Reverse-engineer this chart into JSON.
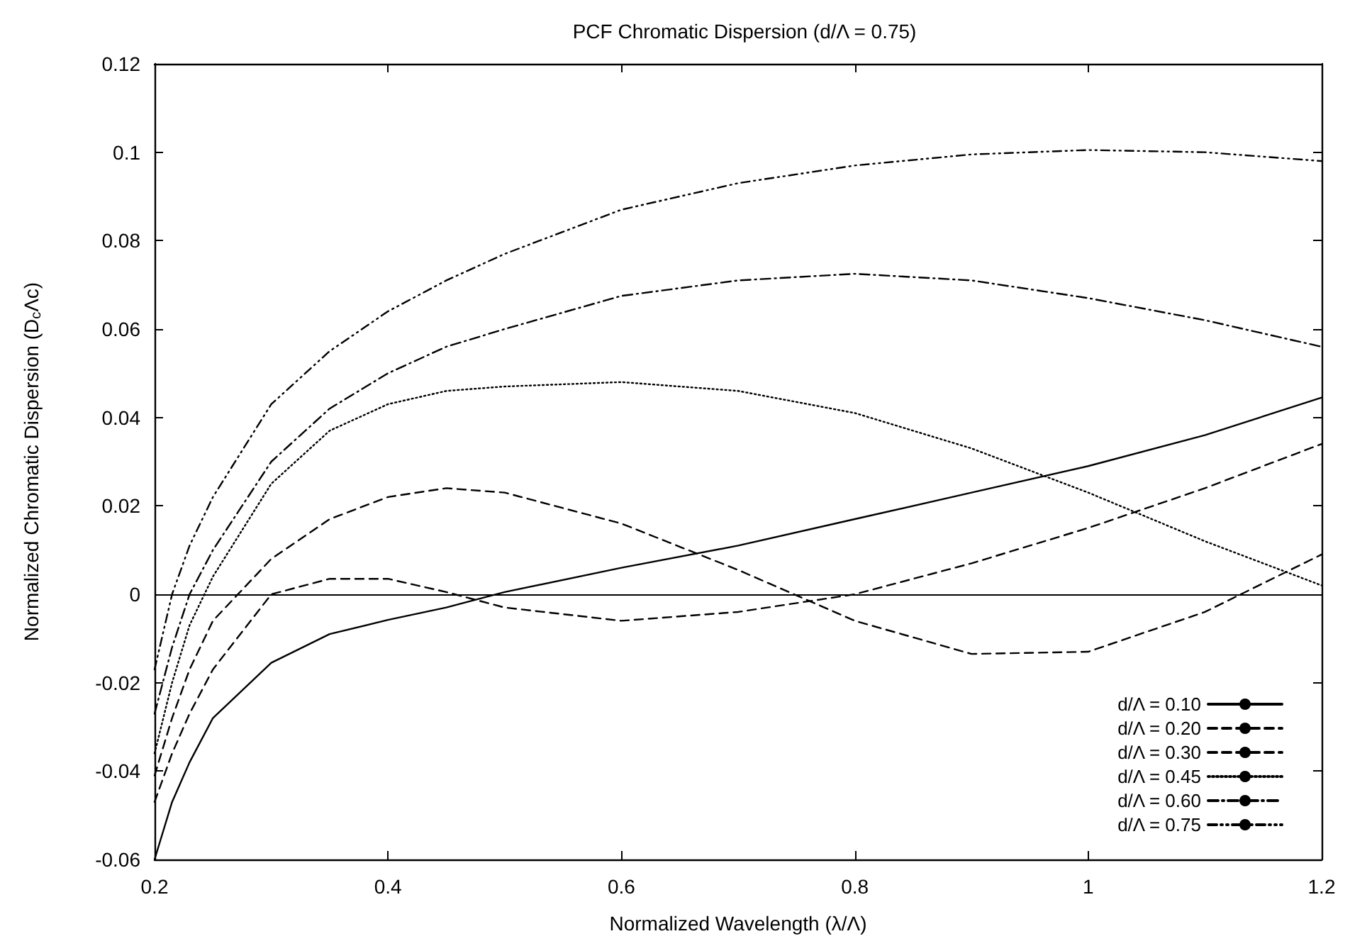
{
  "chart_data": {
    "type": "line",
    "title": "PCF Chromatic Dispersion (d/Λ = 0.75)",
    "xlabel": "Normalized Wavelength (λ/Λ)",
    "ylabel": "Normalized Chromatic Dispersion (D$_{c}$Λc)",
    "x": [
      0.2,
      0.215,
      0.23,
      0.25,
      0.3,
      0.35,
      0.4,
      0.45,
      0.5,
      0.6,
      0.7,
      0.8,
      0.9,
      1.0,
      1.1,
      1.2
    ],
    "xlim": [
      0.2,
      1.2
    ],
    "xticks": [
      0.2,
      0.4,
      0.6,
      0.8,
      1,
      1.2
    ],
    "ylim": [
      -0.06,
      0.12
    ],
    "yticks": [
      -0.06,
      -0.04,
      -0.02,
      0,
      0.02,
      0.04,
      0.06,
      0.08,
      0.1,
      0.12
    ],
    "grid": false,
    "legend": "bottom right",
    "marker": "none",
    "ref_lines": [
      {
        "axis": "y",
        "value": 0,
        "color": "#000000",
        "line_style": "solid"
      }
    ],
    "series": [
      {
        "name": "d/Λ = 0.10",
        "color": "#000000",
        "line_style": "solid",
        "values": [
          -0.06,
          -0.047,
          -0.038,
          -0.028,
          -0.0155,
          -0.009,
          -0.0058,
          -0.003,
          0.0005,
          0.006,
          0.011,
          0.017,
          0.023,
          0.029,
          0.036,
          0.0445
        ]
      },
      {
        "name": "d/Λ = 0.20",
        "color": "#000000",
        "line_style": "dashed",
        "values": [
          -0.047,
          -0.036,
          -0.027,
          -0.017,
          0,
          0.0035,
          0.0035,
          0.0005,
          -0.003,
          -0.006,
          -0.004,
          0.0,
          0.007,
          0.015,
          0.024,
          0.034
        ]
      },
      {
        "name": "d/Λ = 0.30",
        "color": "#000000",
        "line_style": "dashed",
        "values": [
          -0.041,
          -0.028,
          -0.017,
          -0.006,
          0.008,
          0.017,
          0.022,
          0.024,
          0.023,
          0.016,
          0.0055,
          -0.006,
          -0.0135,
          -0.013,
          -0.004,
          0.009
        ]
      },
      {
        "name": "d/Λ = 0.45",
        "color": "#000000",
        "line_style": "dotted",
        "values": [
          -0.036,
          -0.02,
          -0.007,
          0.004,
          0.025,
          0.037,
          0.043,
          0.046,
          0.047,
          0.048,
          0.046,
          0.041,
          0.033,
          0.023,
          0.012,
          0.002
        ]
      },
      {
        "name": "d/Λ = 0.60",
        "color": "#000000",
        "line_style": "dashdot",
        "values": [
          -0.027,
          -0.012,
          0.0,
          0.01,
          0.03,
          0.042,
          0.05,
          0.056,
          0.06,
          0.0675,
          0.071,
          0.0725,
          0.071,
          0.067,
          0.062,
          0.056
        ]
      },
      {
        "name": "d/Λ = 0.75",
        "color": "#000000",
        "line_style": "dashdotdot",
        "values": [
          -0.017,
          0.0,
          0.011,
          0.022,
          0.043,
          0.055,
          0.064,
          0.071,
          0.077,
          0.087,
          0.093,
          0.097,
          0.0995,
          0.1005,
          0.1,
          0.098
        ]
      }
    ]
  }
}
